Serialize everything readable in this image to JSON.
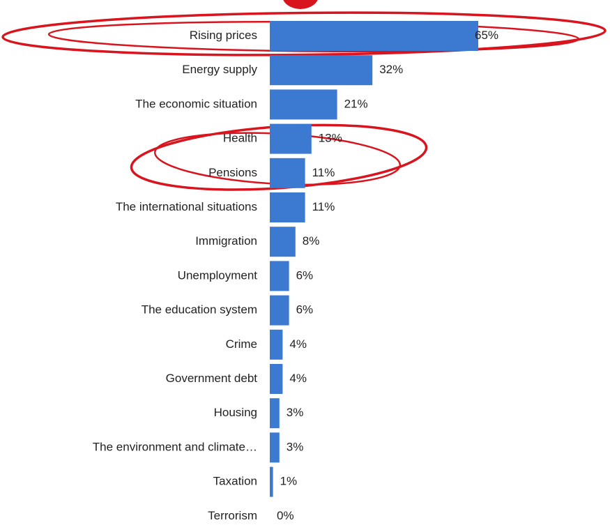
{
  "chart_data": {
    "type": "bar",
    "orientation": "horizontal",
    "categories": [
      "Rising prices",
      "Energy supply",
      "The economic situation",
      "Health",
      "Pensions",
      "The international situations",
      "Immigration",
      "Unemployment",
      "The education system",
      "Crime",
      "Government debt",
      "Housing",
      "The environment and climate…",
      "Taxation",
      "Terrorism"
    ],
    "values": [
      65,
      32,
      21,
      13,
      11,
      11,
      8,
      6,
      6,
      4,
      4,
      3,
      3,
      1,
      0
    ],
    "value_labels": [
      "65%",
      "32%",
      "21%",
      "13%",
      "11%",
      "11%",
      "8%",
      "6%",
      "6%",
      "4%",
      "4%",
      "3%",
      "3%",
      "1%",
      "0%"
    ],
    "unit": "%",
    "bar_color": "#3c79d0",
    "grid": false,
    "legend": "none",
    "highlighted_categories": [
      "Rising prices",
      "Health",
      "Pensions"
    ],
    "highlight_color": "#d8141e"
  }
}
